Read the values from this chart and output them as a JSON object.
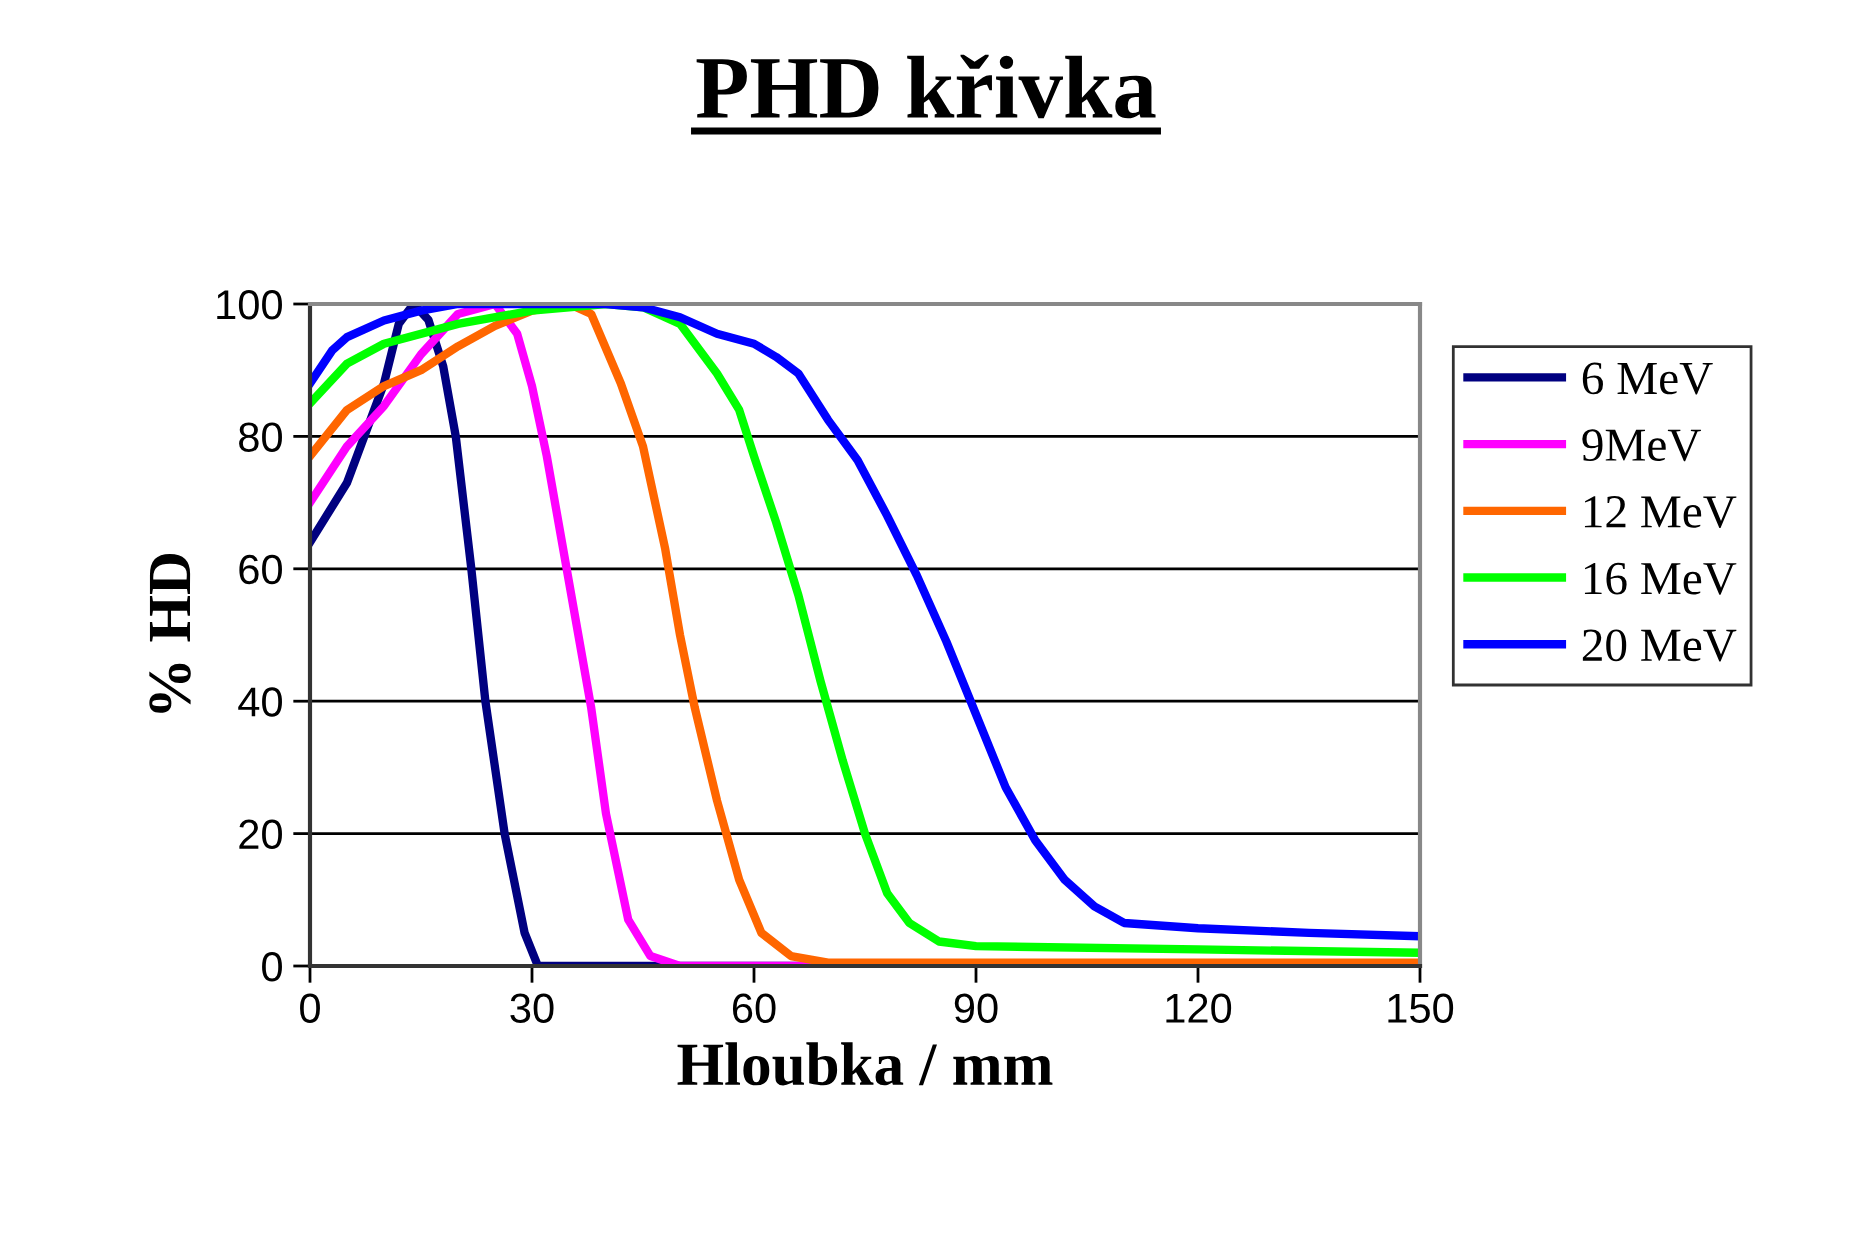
{
  "chart_data": {
    "type": "line",
    "title": "PHD křivka",
    "xlabel": "Hloubka / mm",
    "ylabel": "% HD",
    "xlim": [
      0,
      150
    ],
    "xticks": [
      0,
      30,
      60,
      90,
      120,
      150
    ],
    "ylim": [
      0,
      100
    ],
    "yticks": [
      0,
      20,
      40,
      60,
      80,
      100
    ],
    "grid": "y",
    "legend": "right",
    "marker": "none",
    "line_style": "solid",
    "series": [
      {
        "name": "6 MeV",
        "color": "#000080",
        "x": [
          0,
          5,
          10,
          12,
          14,
          16,
          18,
          19.7,
          21.8,
          23.7,
          26.3,
          29,
          30.8,
          35,
          50,
          150
        ],
        "values": [
          64,
          73,
          88,
          97,
          100,
          97.6,
          90.6,
          80,
          60,
          40,
          20,
          5,
          0,
          0,
          0,
          0
        ]
      },
      {
        "name": "9MeV",
        "color": "#ff00ff",
        "x": [
          0,
          5,
          10,
          15,
          20,
          25,
          28,
          30,
          32,
          35,
          38,
          40,
          43,
          46,
          50,
          150
        ],
        "values": [
          70,
          78.5,
          84.6,
          92.4,
          98.5,
          100,
          95.5,
          87.6,
          77,
          58,
          39,
          23,
          7,
          1.5,
          0,
          0
        ]
      },
      {
        "name": "12 MeV",
        "color": "#ff6600",
        "x": [
          0,
          5,
          10,
          15,
          20,
          25,
          30,
          35,
          38,
          42,
          45,
          48,
          50,
          52,
          55,
          58,
          61,
          65,
          70,
          150
        ],
        "values": [
          77,
          84,
          87.6,
          90,
          93.6,
          96.7,
          99,
          100,
          98.5,
          88,
          78.5,
          63,
          50,
          39,
          25,
          13,
          5,
          1.5,
          0.5,
          0.5
        ]
      },
      {
        "name": "16 MeV",
        "color": "#00ff00",
        "x": [
          0,
          5,
          10,
          20,
          30,
          40,
          45,
          50,
          55,
          58,
          60,
          63,
          66,
          69,
          72,
          75,
          78,
          81,
          85,
          90,
          120,
          150
        ],
        "values": [
          85,
          91,
          94,
          97,
          99,
          100,
          99.5,
          97,
          89.5,
          84,
          77,
          67,
          56,
          43,
          31,
          20,
          11,
          6.5,
          3.7,
          3,
          2.5,
          2
        ]
      },
      {
        "name": "20 MeV",
        "color": "#0000ff",
        "x": [
          0,
          3,
          5,
          10,
          15,
          20,
          30,
          40,
          45,
          50,
          55,
          60,
          63,
          66,
          70,
          74,
          78,
          82,
          86,
          90,
          94,
          98,
          102,
          106,
          110,
          120,
          135,
          150
        ],
        "values": [
          88,
          93,
          95,
          97.5,
          99,
          100,
          100,
          100,
          99.5,
          98,
          95.5,
          94,
          92,
          89.5,
          82.5,
          76.4,
          68,
          59,
          49,
          38,
          27,
          19,
          13,
          9,
          6.5,
          5.7,
          5,
          4.5
        ]
      }
    ]
  }
}
